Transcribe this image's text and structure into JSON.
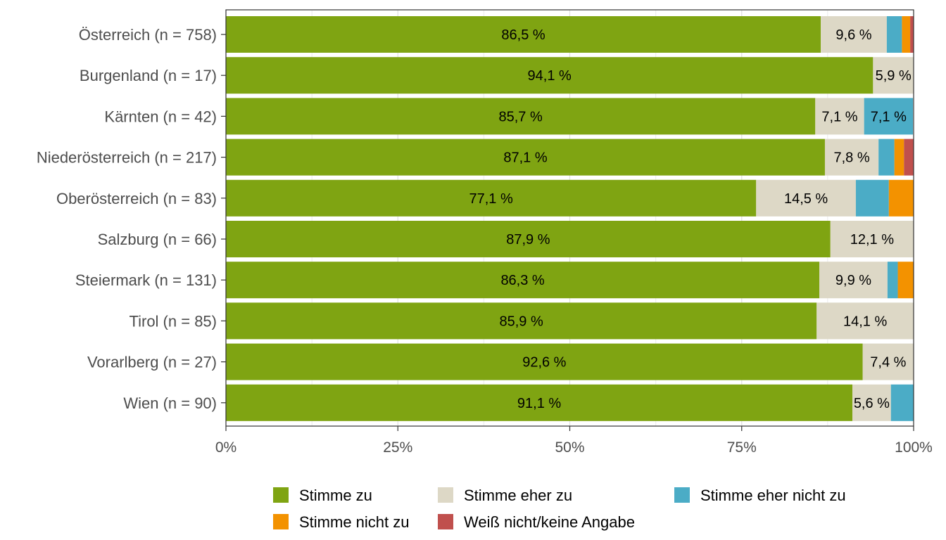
{
  "chart_data": {
    "type": "bar",
    "orientation": "horizontal",
    "stacked": true,
    "categories": [
      "Österreich (n = 758)",
      "Burgenland (n = 17)",
      "Kärnten (n = 42)",
      "Niederösterreich (n = 217)",
      "Oberösterreich (n = 83)",
      "Salzburg (n = 66)",
      "Steiermark (n = 131)",
      "Tirol (n = 85)",
      "Vorarlberg (n = 27)",
      "Wien (n = 90)"
    ],
    "series": [
      {
        "name": "Stimme zu",
        "color": "#7fa412",
        "values": [
          86.5,
          94.1,
          85.7,
          87.1,
          77.1,
          87.9,
          86.3,
          85.9,
          92.6,
          91.1
        ],
        "labels": [
          "86,5 %",
          "94,1 %",
          "85,7 %",
          "87,1 %",
          "77,1 %",
          "87,9 %",
          "86,3 %",
          "85,9 %",
          "92,6 %",
          "91,1 %"
        ]
      },
      {
        "name": "Stimme eher zu",
        "color": "#ddd8c6",
        "values": [
          9.6,
          5.9,
          7.1,
          7.8,
          14.5,
          12.1,
          9.9,
          14.1,
          7.4,
          5.6
        ],
        "labels": [
          "9,6 %",
          "5,9 %",
          "7,1 %",
          "7,8 %",
          "14,5 %",
          "12,1 %",
          "9,9 %",
          "14,1 %",
          "7,4 %",
          "5,6 %"
        ]
      },
      {
        "name": "Stimme eher nicht zu",
        "color": "#4bacc6",
        "values": [
          2.2,
          0,
          7.1,
          2.3,
          4.8,
          0,
          1.5,
          0,
          0,
          3.3
        ],
        "labels": [
          "",
          "",
          "7,1 %",
          "",
          "",
          "",
          "",
          "",
          "",
          ""
        ]
      },
      {
        "name": "Stimme nicht zu",
        "color": "#f39200",
        "values": [
          1.2,
          0,
          0,
          1.4,
          3.6,
          0,
          2.3,
          0,
          0,
          0
        ],
        "labels": [
          "",
          "",
          "",
          "",
          "",
          "",
          "",
          "",
          "",
          ""
        ]
      },
      {
        "name": "Weiß nicht/keine Angabe",
        "color": "#c0504d",
        "values": [
          0.5,
          0,
          0,
          1.4,
          0,
          0,
          0,
          0,
          0,
          0
        ],
        "labels": [
          "",
          "",
          "",
          "",
          "",
          "",
          "",
          "",
          "",
          ""
        ]
      }
    ],
    "xlim": [
      0,
      100
    ],
    "xticks": [
      "0%",
      "25%",
      "50%",
      "75%",
      "100%"
    ],
    "xlabel": "",
    "ylabel": "",
    "grid": true,
    "legend_position": "bottom"
  }
}
